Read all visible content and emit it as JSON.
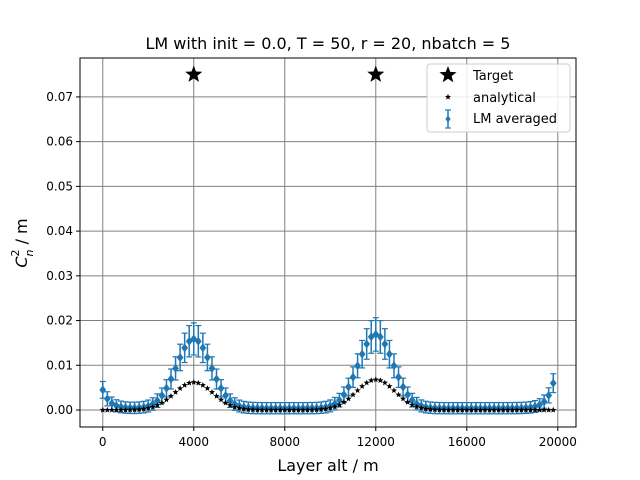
{
  "chart_data": {
    "type": "scatter",
    "title": "LM with init = 0.0, T = 50, r = 20, nbatch = 5",
    "xlabel": "Layer alt / m",
    "ylabel": "C_n^2 / m",
    "xlim": [
      -1000,
      20800
    ],
    "ylim": [
      -0.0038,
      0.0787
    ],
    "xticks": [
      0,
      4000,
      8000,
      12000,
      16000,
      20000
    ],
    "yticks": [
      0.0,
      0.01,
      0.02,
      0.03,
      0.04,
      0.05,
      0.06,
      0.07
    ],
    "ytick_labels": [
      "0.00",
      "0.01",
      "0.02",
      "0.03",
      "0.04",
      "0.05",
      "0.06",
      "0.07"
    ],
    "grid": true,
    "legend_position": "top-right",
    "legend": [
      "Target",
      "analytical",
      "LM averaged"
    ],
    "colors": {
      "target": "#000000",
      "analytical": "#000000",
      "lm": "#1f77b4",
      "grid": "#808080"
    },
    "series": [
      {
        "name": "Target",
        "marker": "star",
        "x": [
          4000,
          12000
        ],
        "y": [
          0.075,
          0.075
        ]
      },
      {
        "name": "analytical",
        "marker": "small-star",
        "profile": {
          "x_start": 0,
          "x_end": 19800,
          "step": 200,
          "peaks": [
            {
              "center": 4000,
              "height": 0.0062,
              "sigma": 850
            },
            {
              "center": 12000,
              "height": 0.0068,
              "sigma": 850
            }
          ],
          "baseline": 0.0
        }
      },
      {
        "name": "LM averaged",
        "marker": "diamond-errorbar",
        "profile": {
          "x_start": 0,
          "x_end": 19800,
          "step": 200,
          "peaks": [
            {
              "center": 4000,
              "height": 0.0155,
              "sigma": 760
            },
            {
              "center": 12000,
              "height": 0.0165,
              "sigma": 760
            }
          ],
          "baseline": 0.0004,
          "edge_left": {
            "x": 0,
            "y": 0.0045,
            "decay": 300
          },
          "edge_right": {
            "x": 19800,
            "y": 0.006,
            "decay": 300
          },
          "yerr": 0.0012
        }
      }
    ]
  }
}
